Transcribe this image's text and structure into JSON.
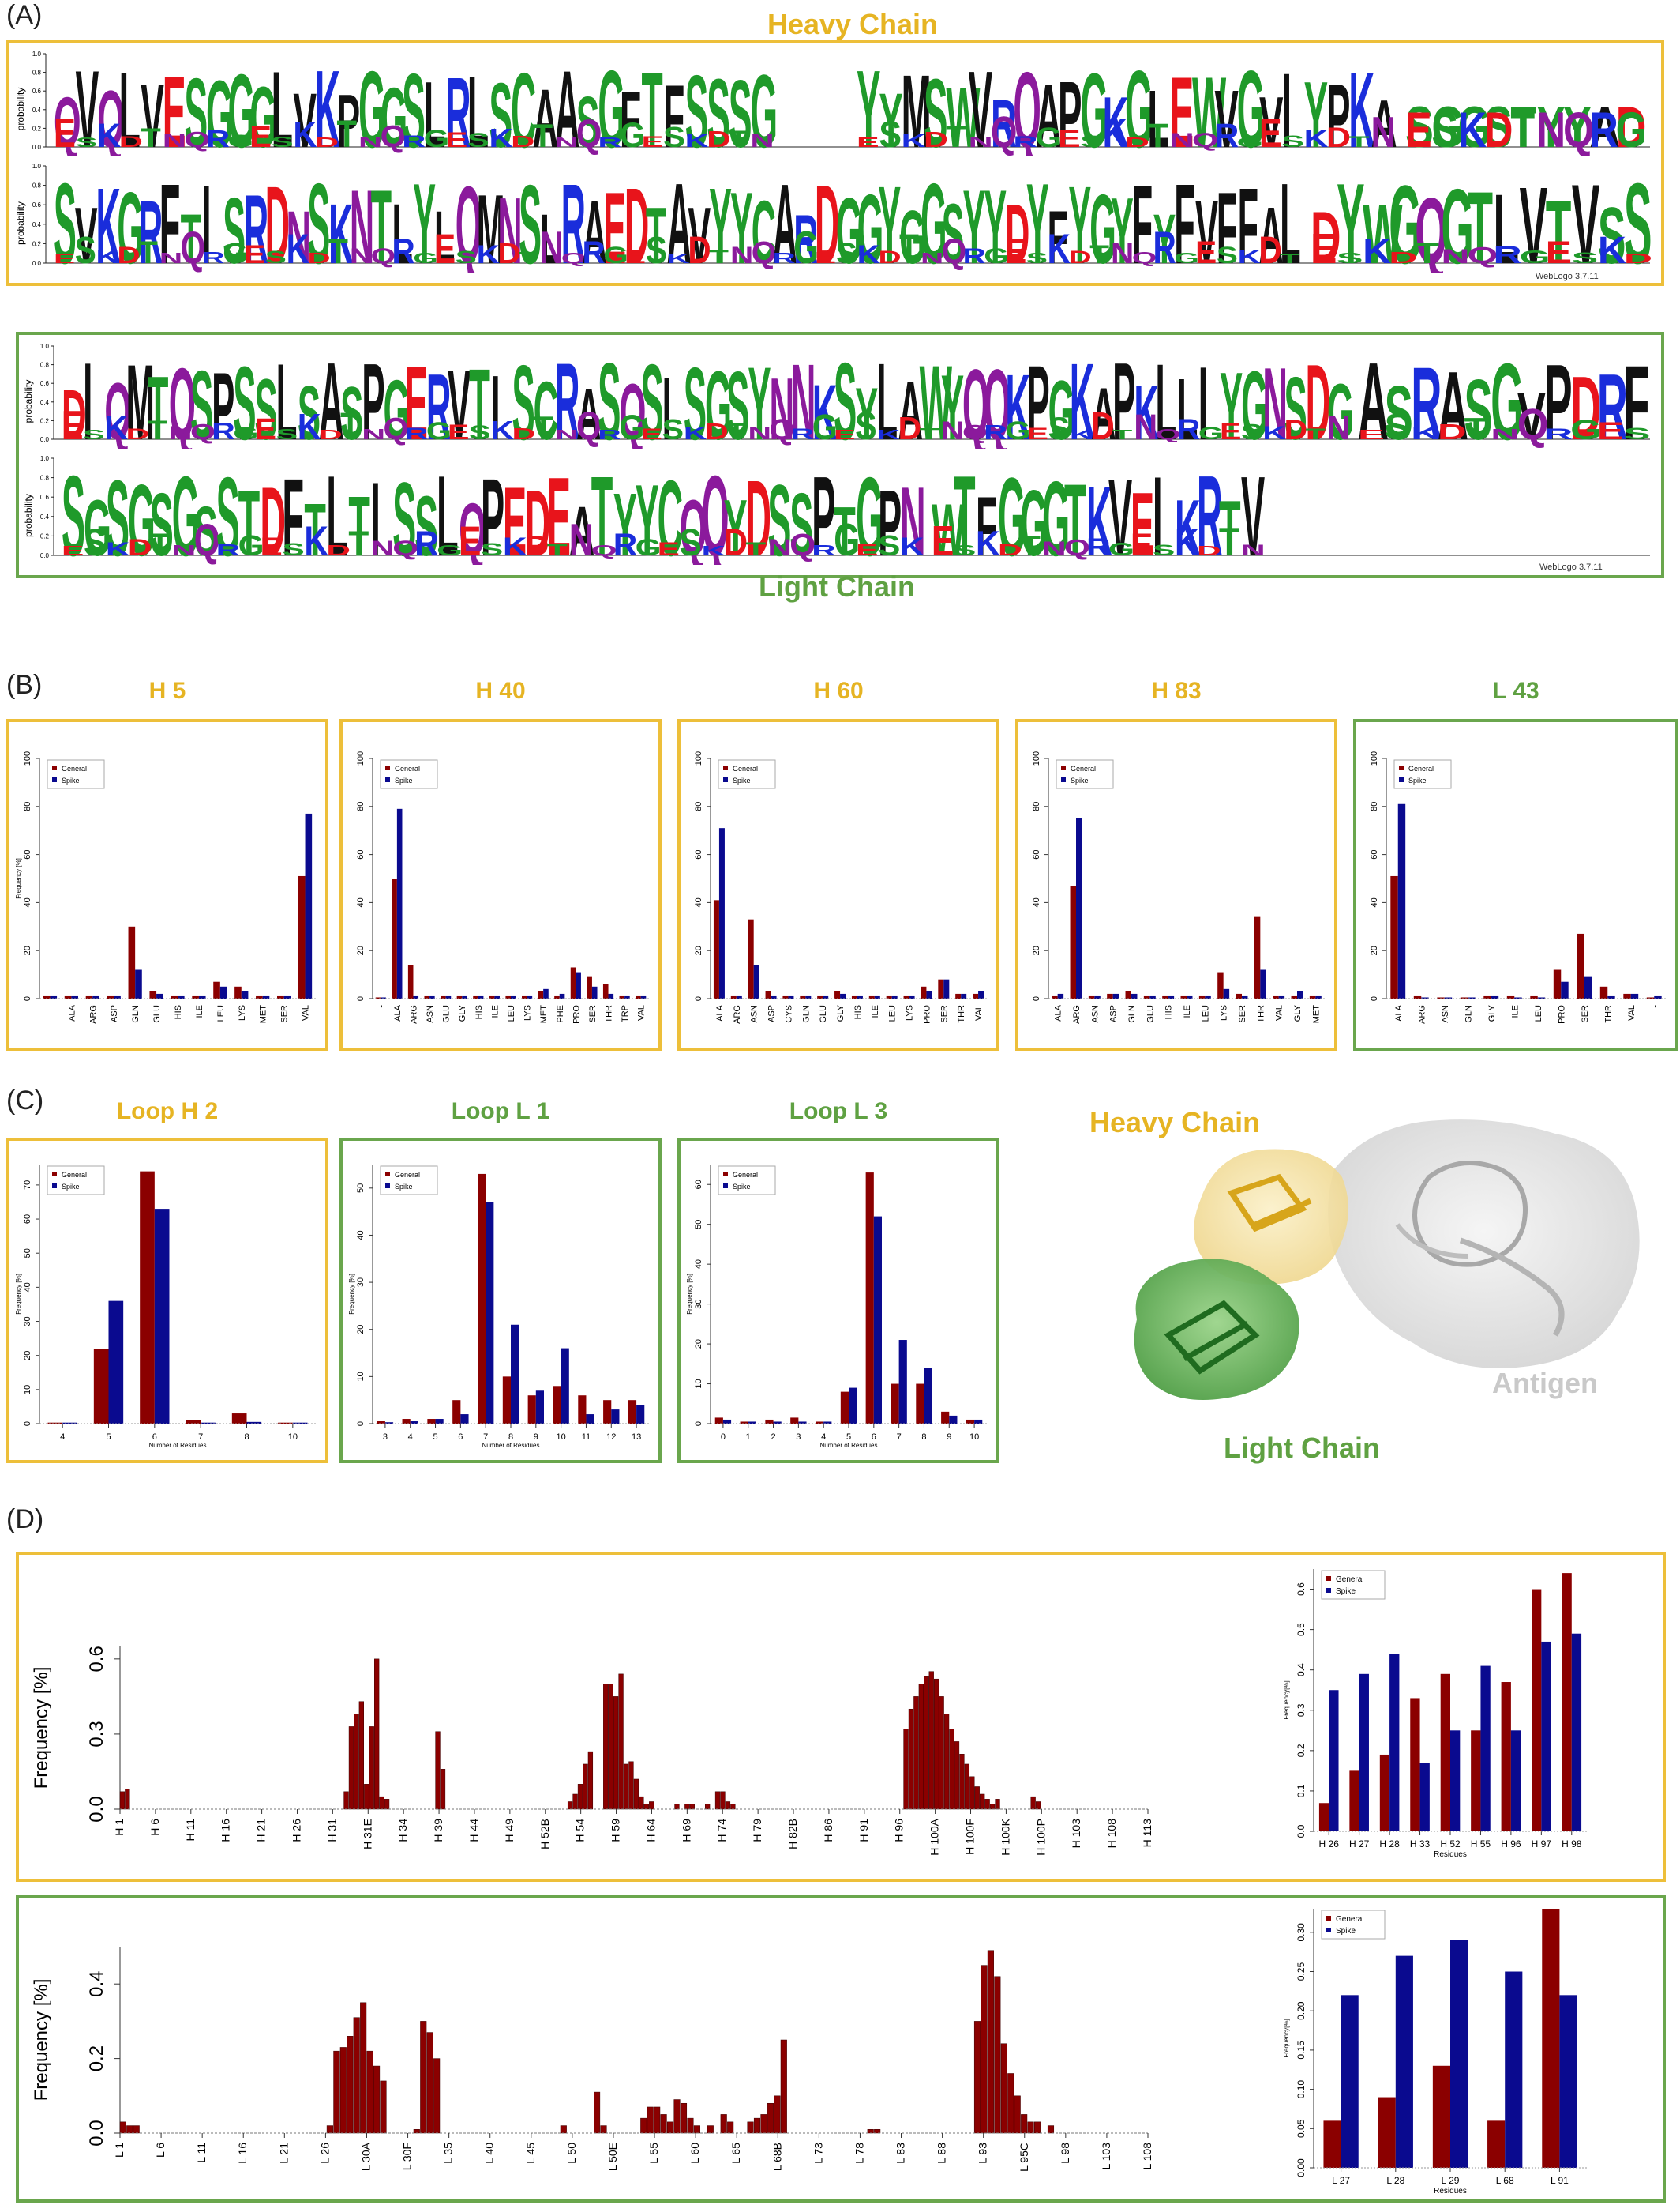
{
  "panels": {
    "A": "(A)",
    "B": "(B)",
    "C": "(C)",
    "D": "(D)"
  },
  "logos": {
    "heavy_title": "Heavy Chain",
    "light_title": "Light Chain",
    "ylabel": "probability",
    "credit": "WebLogo 3.7.11",
    "yticks": [
      "0.0",
      "0.2",
      "0.4",
      "0.6",
      "0.8",
      "1.0"
    ],
    "heavy_row1": "QVQLVESGGGLVKPGGSLRLSCAASGFTFSSSG",
    "heavy_row1b": "YYMSWVRQAPGKGLEWVGVIYPKA",
    "heavy_row1c": "SGGSTYYAD",
    "heavy_row2": "SVKGRFTISRDNSKNTLYLQMNSLRAEDTAVYYCARDGGYGGSYYDYFYGYFYFVFFAL",
    "heavy_row2b": "DYWGQGTLVTVSS",
    "light_row1": "DIQMTQSPSSLSASPGERVTISCRASQSISGSYNNKSYLAWYQQKPGKAPKLLIYGNSDG",
    "light_row1b": "ASRASGVPDRF",
    "light_row2": "SGSGSGSSTDFTLTISSLQPEDEATYYCQQYDSSPTGPN",
    "light_row2b": "WTFGGGTKVEIKRTV"
  },
  "colors": {
    "gold": "#e6b423",
    "green": "#5fa142",
    "general": "#8b0000",
    "spike": "#0a0a8f"
  },
  "legend": {
    "general": "General",
    "spike": "Spike"
  },
  "panelB": [
    {
      "title": "H 5",
      "theme": "gold",
      "ylabel": "Frequency [%]",
      "chart_data": {
        "type": "bar",
        "categories": [
          "-",
          "ALA",
          "ARG",
          "ASP",
          "GLN",
          "GLU",
          "HIS",
          "ILE",
          "LEU",
          "LYS",
          "MET",
          "SER",
          "VAL"
        ],
        "series": [
          {
            "name": "General",
            "values": [
              1,
              1,
              1,
              1,
              30,
              3,
              1,
              1,
              7,
              5,
              1,
              1,
              51
            ]
          },
          {
            "name": "Spike",
            "values": [
              1,
              1,
              1,
              1,
              12,
              2,
              1,
              1,
              5,
              3,
              1,
              1,
              77
            ]
          }
        ],
        "ylim": [
          0,
          100
        ]
      }
    },
    {
      "title": "H 40",
      "theme": "gold",
      "ylabel": "",
      "chart_data": {
        "type": "bar",
        "categories": [
          "-",
          "ALA",
          "ARG",
          "ASN",
          "GLU",
          "GLY",
          "HIS",
          "ILE",
          "LEU",
          "LYS",
          "MET",
          "PHE",
          "PRO",
          "SER",
          "THR",
          "TRP",
          "VAL"
        ],
        "series": [
          {
            "name": "General",
            "values": [
              0.5,
              50,
              14,
              1,
              1,
              1,
              1,
              1,
              1,
              1,
              3,
              1,
              13,
              9,
              6,
              1,
              1
            ]
          },
          {
            "name": "Spike",
            "values": [
              0.5,
              79,
              1,
              1,
              1,
              1,
              1,
              1,
              1,
              1,
              4,
              2,
              11,
              5,
              2,
              1,
              1
            ]
          }
        ],
        "ylim": [
          0,
          100
        ]
      }
    },
    {
      "title": "H 60",
      "theme": "gold",
      "ylabel": "",
      "chart_data": {
        "type": "bar",
        "categories": [
          "ALA",
          "ARG",
          "ASN",
          "ASP",
          "CYS",
          "GLN",
          "GLU",
          "GLY",
          "HIS",
          "ILE",
          "LEU",
          "LYS",
          "PRO",
          "SER",
          "THR",
          "VAL"
        ],
        "series": [
          {
            "name": "General",
            "values": [
              41,
              1,
              33,
              3,
              1,
              1,
              1,
              3,
              1,
              1,
              1,
              1,
              5,
              8,
              2,
              2
            ]
          },
          {
            "name": "Spike",
            "values": [
              71,
              1,
              14,
              1,
              1,
              1,
              1,
              2,
              1,
              1,
              1,
              1,
              3,
              8,
              2,
              3
            ]
          }
        ],
        "ylim": [
          0,
          100
        ]
      }
    },
    {
      "title": "H 83",
      "theme": "gold",
      "ylabel": "",
      "chart_data": {
        "type": "bar",
        "categories": [
          "ALA",
          "ARG",
          "ASN",
          "ASP",
          "GLN",
          "GLU",
          "HIS",
          "ILE",
          "LEU",
          "LYS",
          "SER",
          "THR",
          "VAL",
          "GLY",
          "MET"
        ],
        "series": [
          {
            "name": "General",
            "values": [
              1,
              47,
              1,
              2,
              3,
              1,
              1,
              1,
              1,
              11,
              2,
              34,
              1,
              1,
              1
            ]
          },
          {
            "name": "Spike",
            "values": [
              2,
              75,
              1,
              2,
              2,
              1,
              1,
              1,
              1,
              4,
              1,
              12,
              1,
              3,
              1
            ]
          }
        ],
        "ylim": [
          0,
          100
        ]
      }
    },
    {
      "title": "L 43",
      "theme": "green",
      "ylabel": "",
      "chart_data": {
        "type": "bar",
        "categories": [
          "ALA",
          "ARG",
          "ASN",
          "GLN",
          "GLY",
          "ILE",
          "LEU",
          "PRO",
          "SER",
          "THR",
          "VAL",
          "-"
        ],
        "series": [
          {
            "name": "General",
            "values": [
              51,
              1,
              0.5,
              0.5,
              1,
              1,
              1,
              12,
              27,
              5,
              2,
              0.5
            ]
          },
          {
            "name": "Spike",
            "values": [
              81,
              0.5,
              0.5,
              0.5,
              1,
              0.5,
              0.5,
              7,
              9,
              1,
              2,
              1
            ]
          }
        ],
        "ylim": [
          0,
          100
        ]
      }
    }
  ],
  "panelC": [
    {
      "title": "Loop H 2",
      "theme": "gold",
      "xlabel": "Number of Residues",
      "ylabel": "Frequency [%]",
      "chart_data": {
        "type": "bar",
        "categories": [
          "4",
          "5",
          "6",
          "7",
          "8",
          "10"
        ],
        "series": [
          {
            "name": "General",
            "values": [
              0.3,
              22,
              74,
              1,
              3,
              0.3
            ]
          },
          {
            "name": "Spike",
            "values": [
              0.3,
              36,
              63,
              0.3,
              0.5,
              0.3
            ]
          }
        ],
        "yticks": [
          0,
          10,
          20,
          30,
          40,
          50,
          60,
          70
        ],
        "ylim": [
          0,
          76
        ]
      }
    },
    {
      "title": "Loop L 1",
      "theme": "green",
      "xlabel": "Number of Residues",
      "ylabel": "Frequency [%]",
      "chart_data": {
        "type": "bar",
        "categories": [
          "3",
          "4",
          "5",
          "6",
          "7",
          "8",
          "9",
          "10",
          "11",
          "12",
          "13"
        ],
        "series": [
          {
            "name": "General",
            "values": [
              0.5,
              1,
              1,
              5,
              53,
              10,
              6,
              8,
              6,
              5,
              5
            ]
          },
          {
            "name": "Spike",
            "values": [
              0.3,
              0.5,
              1,
              2,
              47,
              21,
              7,
              16,
              2,
              3,
              4
            ]
          }
        ],
        "yticks": [
          0,
          10,
          20,
          30,
          40,
          50
        ],
        "ylim": [
          0,
          55
        ]
      }
    },
    {
      "title": "Loop L 3",
      "theme": "green",
      "xlabel": "Number of Residues",
      "ylabel": "Frequency [%]",
      "chart_data": {
        "type": "bar",
        "categories": [
          "0",
          "1",
          "2",
          "3",
          "4",
          "5",
          "6",
          "7",
          "8",
          "9",
          "10"
        ],
        "series": [
          {
            "name": "General",
            "values": [
              1.5,
              0.5,
              1,
              1.5,
              0.5,
              8,
              63,
              10,
              10,
              3,
              1
            ]
          },
          {
            "name": "Spike",
            "values": [
              1,
              0.5,
              0.5,
              0.5,
              0.5,
              9,
              52,
              21,
              14,
              2,
              1
            ]
          }
        ],
        "yticks": [
          0,
          10,
          20,
          30,
          40,
          50,
          60
        ],
        "ylim": [
          0,
          65
        ]
      }
    }
  ],
  "structure": {
    "heavy": "Heavy Chain",
    "light": "Light Chain",
    "antigen": "Antigen"
  },
  "panelD": {
    "ylabel": "Frequency [%]",
    "heavy_profile": {
      "type": "bar",
      "xticks": [
        "H 1",
        "H 6",
        "H 11",
        "H 16",
        "H 21",
        "H 26",
        "H 31",
        "H 31E",
        "H 34",
        "H 39",
        "H 44",
        "H 49",
        "H 52B",
        "H 54",
        "H 59",
        "H 64",
        "H 69",
        "H 74",
        "H 79",
        "H 82B",
        "H 86",
        "H 91",
        "H 96",
        "H 100A",
        "H 100F",
        "H 100K",
        "H 100P",
        "H 103",
        "H 108",
        "H 113"
      ],
      "yticks": [
        "0.0",
        "0.3",
        "0.6"
      ],
      "ylim": [
        0,
        0.65
      ],
      "values": [
        0.07,
        0.08,
        0,
        0,
        0,
        0,
        0,
        0,
        0,
        0,
        0,
        0,
        0,
        0,
        0,
        0,
        0,
        0,
        0,
        0,
        0,
        0,
        0,
        0,
        0,
        0,
        0,
        0,
        0,
        0,
        0,
        0,
        0,
        0,
        0,
        0,
        0,
        0,
        0,
        0,
        0,
        0,
        0,
        0,
        0.07,
        0.33,
        0.38,
        0.43,
        0.1,
        0.33,
        0.6,
        0.05,
        0.04,
        0,
        0,
        0,
        0,
        0,
        0,
        0,
        0,
        0,
        0.31,
        0.16,
        0,
        0,
        0,
        0,
        0,
        0,
        0,
        0,
        0,
        0,
        0,
        0,
        0,
        0,
        0,
        0,
        0,
        0,
        0,
        0,
        0,
        0,
        0,
        0,
        0.03,
        0.06,
        0.1,
        0.18,
        0.23,
        0,
        0,
        0.5,
        0.5,
        0.45,
        0.54,
        0.18,
        0.19,
        0.12,
        0.05,
        0.02,
        0.03,
        0,
        0,
        0,
        0,
        0.02,
        0,
        0.02,
        0.02,
        0,
        0,
        0.02,
        0,
        0.07,
        0.07,
        0.03,
        0.02,
        0,
        0,
        0,
        0,
        0,
        0,
        0,
        0,
        0,
        0,
        0,
        0,
        0,
        0,
        0,
        0,
        0,
        0,
        0,
        0,
        0,
        0,
        0,
        0,
        0,
        0,
        0,
        0,
        0,
        0,
        0,
        0,
        0,
        0.32,
        0.4,
        0.45,
        0.5,
        0.53,
        0.55,
        0.52,
        0.45,
        0.38,
        0.32,
        0.27,
        0.22,
        0.18,
        0.13,
        0.09,
        0.06,
        0.04,
        0.02,
        0.04,
        0,
        0,
        0,
        0,
        0,
        0,
        0.05,
        0.03,
        0,
        0,
        0,
        0,
        0,
        0,
        0,
        0,
        0,
        0,
        0,
        0,
        0,
        0,
        0,
        0,
        0,
        0,
        0,
        0,
        0
      ]
    },
    "heavy_zoom": {
      "type": "bar",
      "xlabel": "Residues",
      "ylabel": "Frequency[%]",
      "categories": [
        "H 26",
        "H 27",
        "H 28",
        "H 33",
        "H 52",
        "H 55",
        "H 96",
        "H 97",
        "H 98"
      ],
      "series": [
        {
          "name": "General",
          "values": [
            0.07,
            0.15,
            0.19,
            0.33,
            0.39,
            0.25,
            0.37,
            0.6,
            0.64
          ]
        },
        {
          "name": "Spike",
          "values": [
            0.35,
            0.39,
            0.44,
            0.17,
            0.25,
            0.41,
            0.25,
            0.47,
            0.49
          ]
        }
      ],
      "yticks": [
        "0.0",
        "0.1",
        "0.2",
        "0.3",
        "0.4",
        "0.5",
        "0.6"
      ],
      "ylim": [
        0,
        0.65
      ]
    },
    "light_profile": {
      "type": "bar",
      "xticks": [
        "L 1",
        "L 6",
        "L 11",
        "L 16",
        "L 21",
        "L 26",
        "L 30A",
        "L 30F",
        "L 35",
        "L 40",
        "L 45",
        "L 50",
        "L 50E",
        "L 55",
        "L 60",
        "L 65",
        "L 68B",
        "L 73",
        "L 78",
        "L 83",
        "L 88",
        "L 93",
        "L 95C",
        "L 98",
        "L 103",
        "L 108"
      ],
      "yticks": [
        "0.0",
        "0.2",
        "0.4"
      ],
      "ylim": [
        0,
        0.5
      ],
      "values": [
        0.03,
        0.02,
        0.02,
        0,
        0,
        0,
        0,
        0,
        0,
        0,
        0,
        0,
        0,
        0,
        0,
        0,
        0,
        0,
        0,
        0,
        0,
        0,
        0,
        0,
        0,
        0,
        0,
        0,
        0,
        0,
        0,
        0.02,
        0.22,
        0.23,
        0.26,
        0.31,
        0.35,
        0.22,
        0.18,
        0.14,
        0,
        0,
        0,
        0,
        0.01,
        0.3,
        0.27,
        0.2,
        0,
        0,
        0,
        0,
        0,
        0,
        0,
        0,
        0,
        0,
        0,
        0,
        0,
        0,
        0,
        0,
        0,
        0,
        0.02,
        0,
        0,
        0,
        0,
        0.11,
        0.02,
        0,
        0,
        0,
        0,
        0,
        0.04,
        0.07,
        0.07,
        0.05,
        0.03,
        0.09,
        0.08,
        0.04,
        0.02,
        0,
        0.02,
        0,
        0.05,
        0.03,
        0,
        0,
        0.03,
        0.04,
        0.05,
        0.08,
        0.1,
        0.25,
        0,
        0,
        0,
        0,
        0,
        0,
        0,
        0,
        0,
        0,
        0,
        0,
        0.01,
        0.01,
        0,
        0,
        0,
        0,
        0,
        0,
        0,
        0,
        0,
        0,
        0,
        0,
        0,
        0,
        0.3,
        0.45,
        0.49,
        0.42,
        0.24,
        0.16,
        0.1,
        0.05,
        0.03,
        0.03,
        0,
        0.02,
        0,
        0,
        0,
        0,
        0,
        0,
        0,
        0,
        0,
        0,
        0,
        0,
        0,
        0
      ]
    },
    "light_zoom": {
      "type": "bar",
      "xlabel": "Residues",
      "ylabel": "Frequency[%]",
      "categories": [
        "L 27",
        "L 28",
        "L 29",
        "L 68",
        "L 91"
      ],
      "series": [
        {
          "name": "General",
          "values": [
            0.06,
            0.09,
            0.13,
            0.06,
            0.33
          ]
        },
        {
          "name": "Spike",
          "values": [
            0.22,
            0.27,
            0.29,
            0.25,
            0.22
          ]
        }
      ],
      "yticks": [
        "0.00",
        "0.05",
        "0.10",
        "0.15",
        "0.20",
        "0.25",
        "0.30"
      ],
      "ylim": [
        0,
        0.33
      ]
    }
  }
}
